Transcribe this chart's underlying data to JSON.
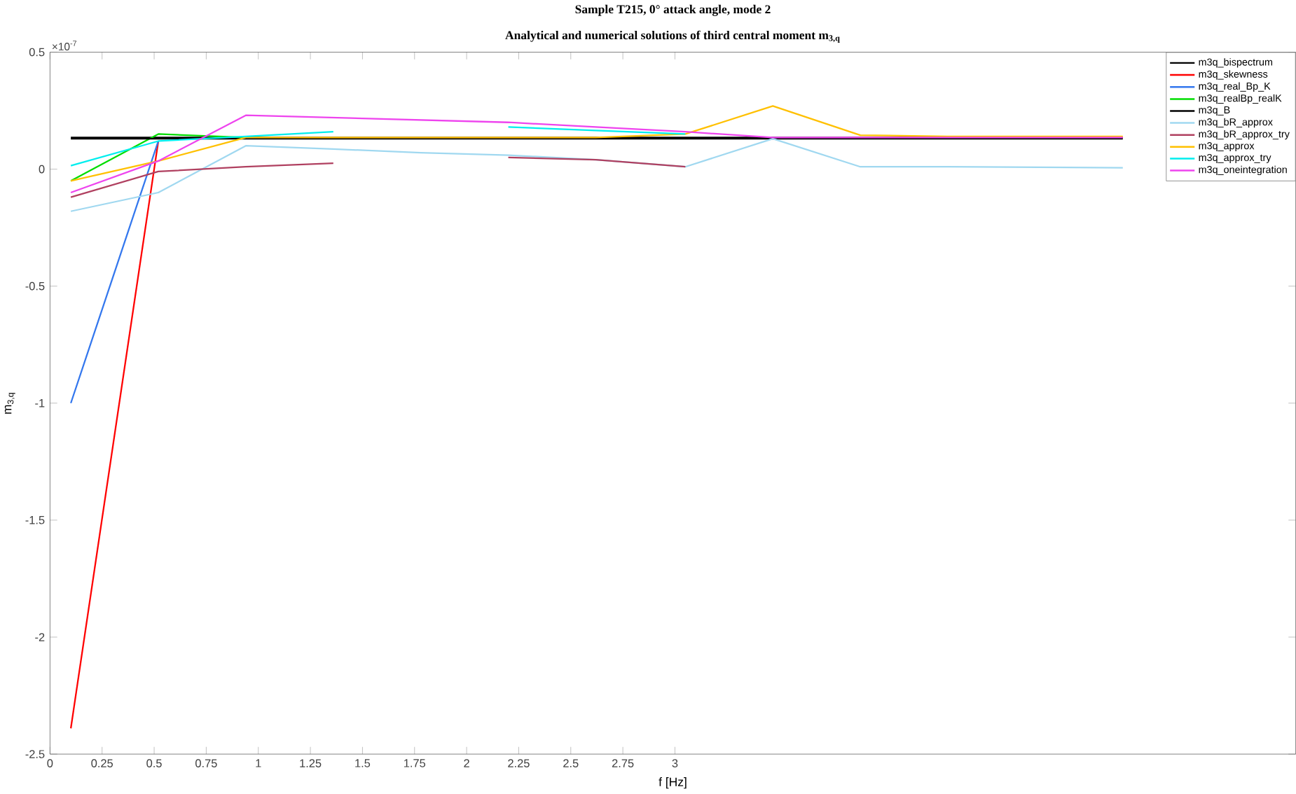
{
  "chart_data": {
    "type": "line",
    "title": "Sample T215, 0° attack angle, mode 2",
    "subtitle": "Analytical and numerical solutions of third central moment m$_{3,q}$",
    "xlabel": "f [Hz]",
    "ylabel": "m$_{3,q}$",
    "annotations": [
      "×10$^{-7}$"
    ],
    "legend": "top right",
    "x": [
      0.1,
      0.52,
      0.94,
      1.36,
      1.78,
      2.2,
      2.62,
      3.05,
      3.47,
      3.89,
      4.31,
      4.73,
      5.15
    ],
    "xlim": [
      0,
      5.98
    ],
    "ylim": [
      -2.5,
      0.5
    ],
    "xticks": [
      0,
      0.25,
      0.5,
      0.75,
      1,
      1.25,
      1.5,
      1.75,
      2,
      2.25,
      2.5,
      2.75,
      3
    ],
    "yticks": [
      -2.5,
      -2,
      -1.5,
      -1,
      -0.5,
      0,
      0.5
    ],
    "series": [
      {
        "name": "m3q_bispectrum",
        "color": "#000000",
        "values": [
          0.135,
          0.135,
          0.135,
          0.135,
          0.135,
          0.135,
          0.135,
          0.135,
          0.135,
          0.135,
          0.135,
          0.135,
          0.135
        ]
      },
      {
        "name": "m3q_skewness",
        "color": "#ff0000",
        "values": [
          -2.39,
          0.12,
          null,
          null,
          null,
          null,
          null,
          null,
          null,
          null,
          null,
          null,
          null
        ]
      },
      {
        "name": "m3q_real_Bp_K",
        "color": "#3377ee",
        "values": [
          -1.0,
          0.12,
          null,
          null,
          null,
          null,
          null,
          null,
          null,
          null,
          null,
          null,
          null
        ]
      },
      {
        "name": "m3q_realBp_realK",
        "color": "#00dd00",
        "values": [
          -0.05,
          0.15,
          0.135,
          null,
          null,
          null,
          null,
          null,
          null,
          null,
          null,
          null,
          null
        ]
      },
      {
        "name": "m3q_B",
        "color": "#000000",
        "values": [
          0.13,
          0.13,
          0.13,
          0.13,
          0.13,
          0.13,
          0.13,
          0.13,
          0.13,
          0.13,
          0.13,
          0.13,
          0.13
        ]
      },
      {
        "name": "m3q_bR_approx",
        "color": "#a0d8f0",
        "values": [
          -0.18,
          -0.1,
          0.1,
          0.086,
          0.07,
          0.06,
          0.04,
          0.01,
          0.13,
          0.01,
          0.01,
          0.008,
          0.006
        ]
      },
      {
        "name": "m3q_bR_approx_try",
        "color": "#b04060",
        "values": [
          -0.12,
          -0.01,
          0.01,
          0.025,
          null,
          0.05,
          0.04,
          0.01,
          null,
          null,
          null,
          null,
          null
        ]
      },
      {
        "name": "m3q_approx",
        "color": "#ffc000",
        "values": [
          -0.05,
          0.035,
          0.135,
          0.135,
          0.135,
          0.135,
          0.135,
          0.15,
          0.27,
          0.145,
          0.14,
          0.14,
          0.14
        ]
      },
      {
        "name": "m3q_approx_try",
        "color": "#00eeee",
        "values": [
          0.015,
          0.12,
          0.14,
          0.16,
          null,
          0.18,
          0.165,
          0.15,
          null,
          null,
          null,
          null,
          null
        ]
      },
      {
        "name": "m3q_oneintegration",
        "color": "#ee44ee",
        "values": [
          -0.1,
          0.035,
          0.23,
          0.22,
          0.21,
          0.2,
          0.18,
          0.16,
          0.135,
          0.135,
          0.135,
          0.135,
          0.135
        ]
      }
    ]
  }
}
